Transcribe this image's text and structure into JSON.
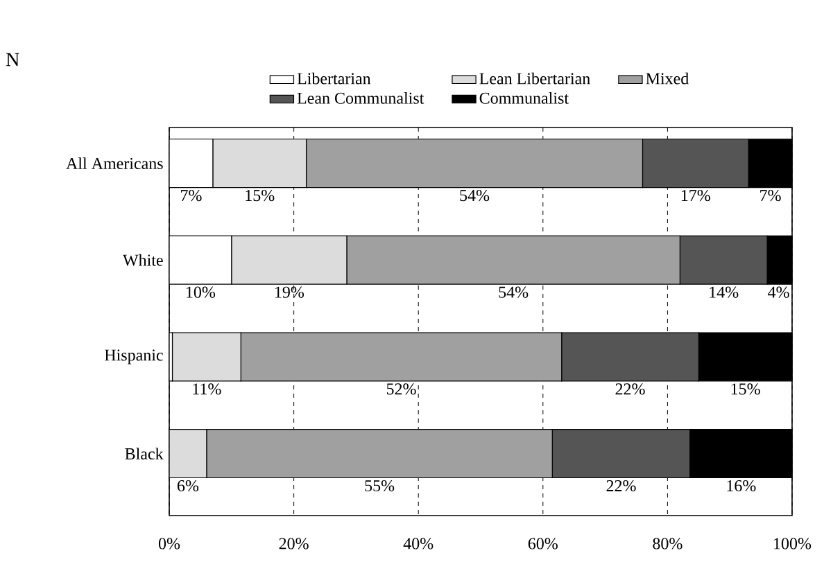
{
  "chart_data": {
    "type": "bar",
    "orientation": "horizontal",
    "stacked": true,
    "categories": [
      "All Americans",
      "White",
      "Hispanic",
      "Black"
    ],
    "series": [
      {
        "name": "Libertarian",
        "color": "#ffffff",
        "values": [
          7,
          10,
          0.5,
          0
        ],
        "value_labels": [
          "7%",
          "10%",
          null,
          null
        ]
      },
      {
        "name": "Lean Libertarian",
        "color": "#dcdcdc",
        "values": [
          15,
          18.5,
          11,
          6
        ],
        "value_labels": [
          "15%",
          "19%",
          "11%",
          "6%"
        ]
      },
      {
        "name": "Mixed",
        "color": "#a0a0a0",
        "values": [
          54,
          53.5,
          51.5,
          55.5
        ],
        "value_labels": [
          "54%",
          "54%",
          "52%",
          "55%"
        ]
      },
      {
        "name": "Lean Communalist",
        "color": "#555555",
        "values": [
          17,
          14,
          22,
          22.1
        ],
        "value_labels": [
          "17%",
          "14%",
          "22%",
          "22%"
        ]
      },
      {
        "name": "Communalist",
        "color": "#000000",
        "values": [
          7,
          4,
          15,
          16.4
        ],
        "value_labels": [
          "7%",
          "4%",
          "15%",
          "16%"
        ]
      }
    ],
    "xlim": [
      0,
      100
    ],
    "xticks": [
      {
        "value": 0,
        "label": "0%"
      },
      {
        "value": 20,
        "label": "20%"
      },
      {
        "value": 40,
        "label": "40%"
      },
      {
        "value": 60,
        "label": "60%"
      },
      {
        "value": 80,
        "label": "80%"
      },
      {
        "value": 100,
        "label": "100%"
      }
    ],
    "grid": "x",
    "legend": "top",
    "annotations": [
      "N"
    ]
  }
}
